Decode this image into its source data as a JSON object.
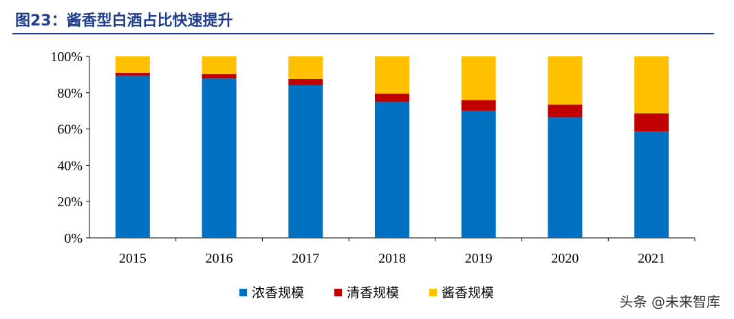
{
  "title": "图23：酱香型白酒占比快速提升",
  "watermark": "头条 @未来智库",
  "chart_data": {
    "type": "bar",
    "stacked": true,
    "categories": [
      "2015",
      "2016",
      "2017",
      "2018",
      "2019",
      "2020",
      "2021"
    ],
    "series": [
      {
        "name": "浓香规模",
        "color": "#0070C0",
        "values": [
          89.3,
          87.8,
          84.1,
          74.9,
          70.1,
          66.5,
          58.6
        ]
      },
      {
        "name": "清香规模",
        "color": "#C00000",
        "values": [
          1.6,
          2.4,
          3.4,
          4.5,
          5.8,
          6.9,
          10.0
        ]
      },
      {
        "name": "酱香规模",
        "color": "#FFC000",
        "values": [
          9.1,
          9.8,
          12.5,
          20.6,
          24.1,
          26.6,
          31.4
        ]
      }
    ],
    "ylim": [
      0,
      100
    ],
    "yticks": [
      "0%",
      "20%",
      "40%",
      "60%",
      "80%",
      "100%"
    ],
    "legend": "bottom",
    "grid": false
  }
}
